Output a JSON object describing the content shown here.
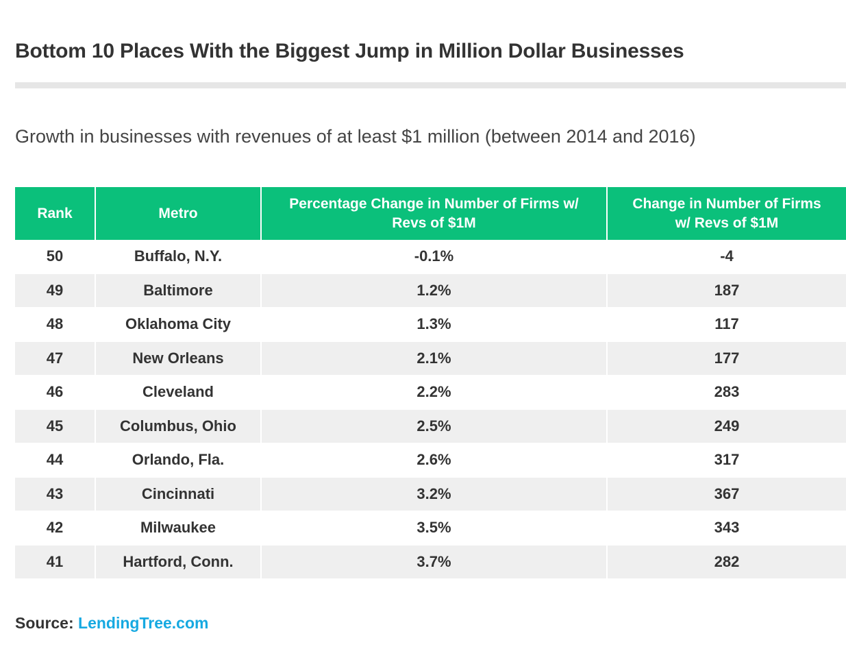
{
  "title": "Bottom 10 Places With the Biggest Jump in Million Dollar Businesses",
  "subtitle": "Growth in businesses with revenues of at least $1 million (between 2014 and 2016)",
  "colors": {
    "header_bg": "#0bc07b",
    "header_text": "#ffffff",
    "stripe": "#efefef",
    "link": "#16a9e1"
  },
  "source": {
    "label": "Source:",
    "link_text": "LendingTree.com"
  },
  "chart_data": {
    "type": "table",
    "columns": [
      "Rank",
      "Metro",
      "Percentage Change in Number of Firms w/ Revs of $1M",
      "Change in Number of Firms w/ Revs of $1M"
    ],
    "rows": [
      [
        "50",
        "Buffalo, N.Y.",
        "-0.1%",
        "-4"
      ],
      [
        "49",
        "Baltimore",
        "1.2%",
        "187"
      ],
      [
        "48",
        "Oklahoma City",
        "1.3%",
        "117"
      ],
      [
        "47",
        "New Orleans",
        "2.1%",
        "177"
      ],
      [
        "46",
        "Cleveland",
        "2.2%",
        "283"
      ],
      [
        "45",
        "Columbus, Ohio",
        "2.5%",
        "249"
      ],
      [
        "44",
        "Orlando, Fla.",
        "2.6%",
        "317"
      ],
      [
        "43",
        "Cincinnati",
        "3.2%",
        "367"
      ],
      [
        "42",
        "Milwaukee",
        "3.5%",
        "343"
      ],
      [
        "41",
        "Hartford, Conn.",
        "3.7%",
        "282"
      ]
    ]
  }
}
